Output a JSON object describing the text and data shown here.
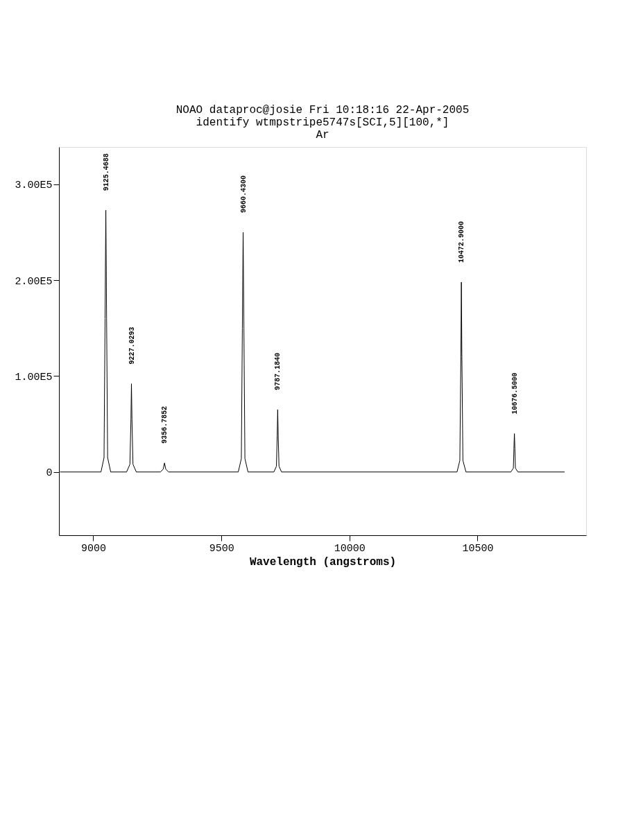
{
  "chart_data": {
    "type": "line",
    "title": "NOAO dataproc@josie Fri 10:18:16 22-Apr-2005",
    "subtitle": "identify wtmpstripe5747s[SCI,5][100,*]",
    "xlabel": "Wavelength (angstroms)",
    "x": [
      8870,
      9030,
      9042,
      9046,
      9049,
      9052,
      9056,
      9068,
      9130,
      9143,
      9147,
      9149,
      9151,
      9155,
      9168,
      9262,
      9273,
      9278,
      9283,
      9294,
      9566,
      9578,
      9582,
      9585,
      9588,
      9592,
      9604,
      9705,
      9715,
      9718,
      9720,
      9722,
      9725,
      9735,
      10420,
      10431,
      10435,
      10437,
      10439,
      10443,
      10455,
      10630,
      10640,
      10642,
      10644,
      10646,
      10648,
      10658,
      10840
    ],
    "series": [
      {
        "color": "#000000",
        "values": [
          0,
          0,
          15000,
          160000,
          273000,
          160000,
          15000,
          0,
          0,
          8000,
          55000,
          92000,
          55000,
          8000,
          0,
          0,
          3000,
          9400,
          3000,
          0,
          0,
          14000,
          150000,
          250000,
          150000,
          14000,
          0,
          0,
          6000,
          38000,
          65000,
          38000,
          6000,
          0,
          0,
          12000,
          120000,
          198000,
          120000,
          12000,
          0,
          0,
          4000,
          24000,
          40000,
          24000,
          4000,
          0,
          0
        ]
      }
    ],
    "annotations": [
      "Ar",
      {
        "text": "9125.4688",
        "x": 9049,
        "y": 273000
      },
      {
        "text": "9227.0293",
        "x": 9149,
        "y": 92000
      },
      {
        "text": "9356.7852",
        "x": 9278,
        "y": 9400
      },
      {
        "text": "9660.4300",
        "x": 9585,
        "y": 250000
      },
      {
        "text": "9787.1840",
        "x": 9720,
        "y": 65000
      },
      {
        "text": "10472.9000",
        "x": 10437,
        "y": 198000
      },
      {
        "text": "10676.5000",
        "x": 10644,
        "y": 40000
      }
    ],
    "xlim": [
      8866,
      10924
    ],
    "xticks": [
      9000,
      9500,
      10000,
      10500
    ],
    "ylim": [
      -66000,
      339000
    ],
    "yticks": [
      0,
      {
        "value": 100000,
        "label": "1.00E5"
      },
      {
        "value": 200000,
        "label": "2.00E5"
      },
      {
        "value": 300000,
        "label": "3.00E5"
      }
    ],
    "grid": false,
    "marker": "none",
    "line_style": "solid"
  }
}
